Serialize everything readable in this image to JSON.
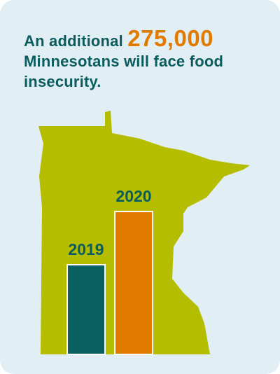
{
  "chart_data": {
    "type": "bar",
    "title_parts": [
      "An additional",
      "275,000",
      "Minnesotans will face food insecurity."
    ],
    "categories": [
      "2019",
      "2020"
    ],
    "values": [
      128,
      204
    ],
    "colors": [
      "#0b6161",
      "#e07b00"
    ],
    "label_color": "#0b5c5e",
    "highlight_color": "#e07b00"
  }
}
